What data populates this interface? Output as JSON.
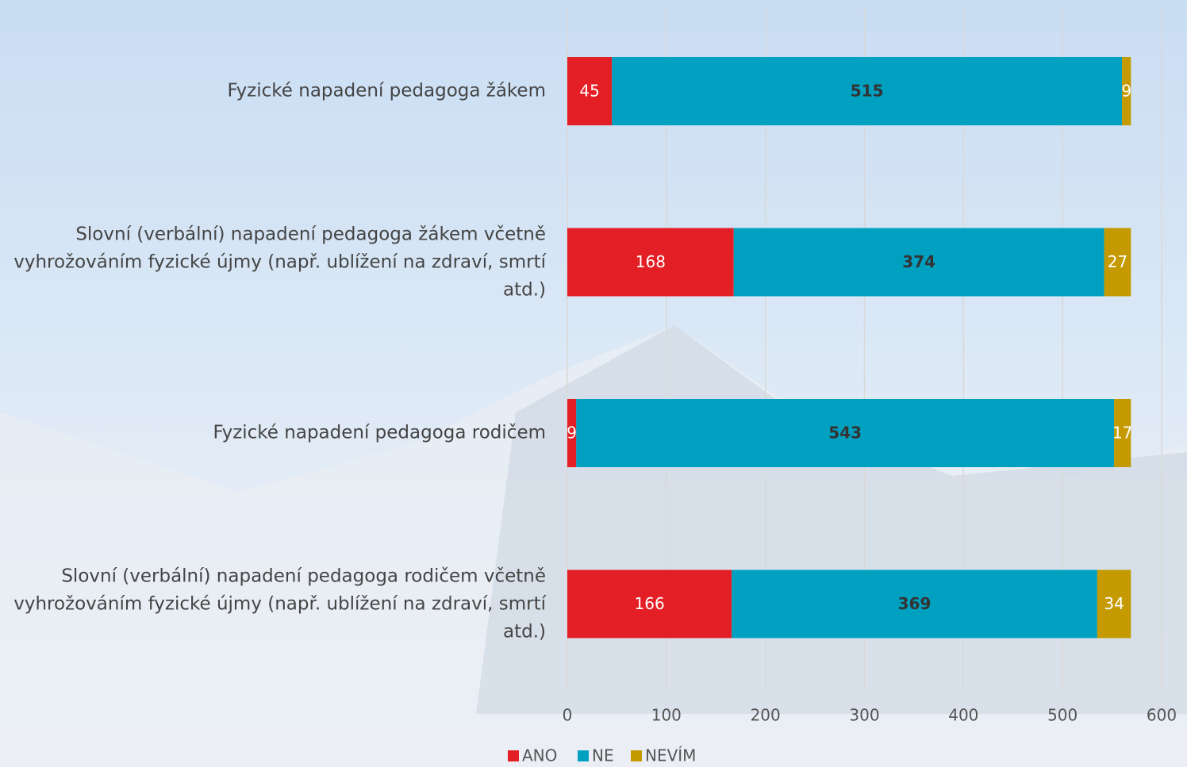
{
  "chart_data": {
    "type": "bar",
    "orientation": "horizontal",
    "stacked": true,
    "categories": [
      "Fyzické napadení pedagoga žákem",
      "Slovní (verbální) napadení pedagoga žákem včetně vyhrožováním fyzické újmy (např. ublížení na zdraví, smrtí atd.)",
      "Fyzické napadení pedagoga rodičem",
      "Slovní (verbální) napadení pedagoga rodičem včetně vyhrožováním fyzické újmy (např. ublížení na zdraví, smrtí atd.)"
    ],
    "series": [
      {
        "name": "ANO",
        "color": "#e31e24",
        "label_color": "#ffffff",
        "values": [
          45,
          168,
          9,
          166
        ]
      },
      {
        "name": "NE",
        "color": "#00a0c0",
        "label_color": "#333333",
        "values": [
          515,
          374,
          543,
          369
        ]
      },
      {
        "name": "NEVÍM",
        "color": "#c49a00",
        "label_color": "#ffffff",
        "values": [
          9,
          27,
          17,
          34
        ]
      }
    ],
    "xlim": [
      0,
      600
    ],
    "xticks": [
      0,
      100,
      200,
      300,
      400,
      500,
      600
    ],
    "grid": true,
    "legend": "bottom"
  }
}
